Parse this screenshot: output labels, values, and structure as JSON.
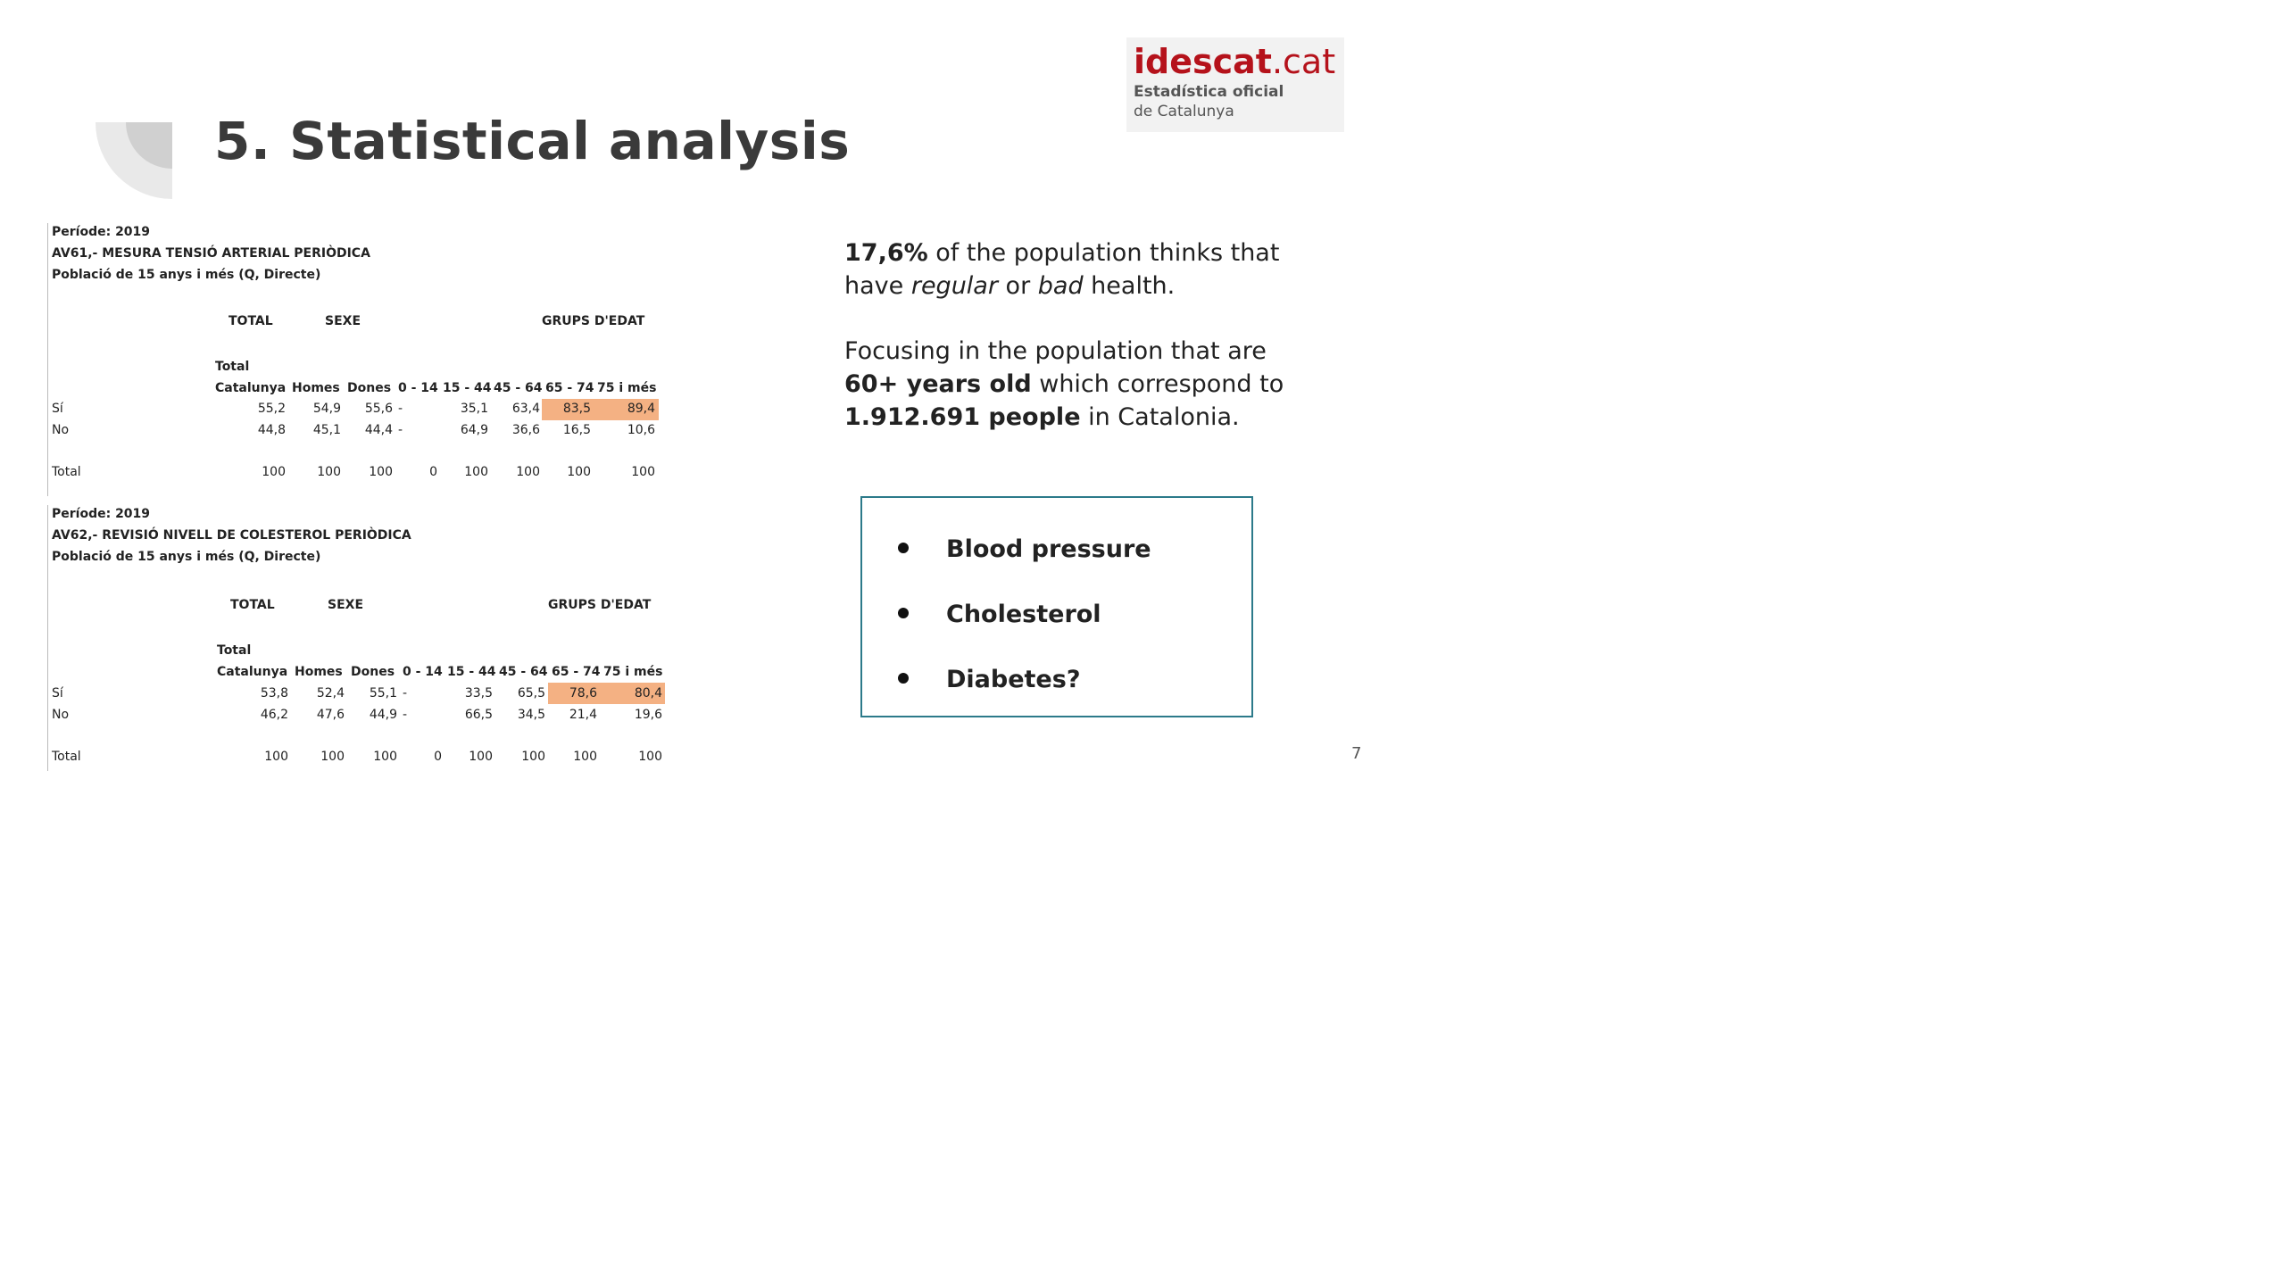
{
  "slide": {
    "title": "5.  Statistical analysis",
    "page_number": "7"
  },
  "logo": {
    "brand_bold": "idescat",
    "brand_suffix": ".cat",
    "line1": "Estadística oficial",
    "line2": "de Catalunya",
    "brand_color": "#b5121b"
  },
  "highlight_color": "#f4b183",
  "table1": {
    "periode": "Període: 2019",
    "title": "AV61,- MESURA  TENSIÓ ARTERIAL PERIÒDICA",
    "population": "Població de 15 anys i més (Q, Directe)",
    "group_total": "TOTAL",
    "group_sexe": "SEXE",
    "group_edat": "GRUPS D'EDAT",
    "total_label": "Total",
    "columns": [
      "Catalunya",
      "Homes",
      "Dones",
      "0 - 14",
      "15 - 44",
      "45 - 64",
      "65 - 74",
      "75 i més"
    ],
    "rows": [
      {
        "label": "Sí",
        "values": [
          "55,2",
          "54,9",
          "55,6",
          "-",
          "35,1",
          "63,4",
          "83,5",
          "89,4"
        ]
      },
      {
        "label": "No",
        "values": [
          "44,8",
          "45,1",
          "44,4",
          "-",
          "64,9",
          "36,6",
          "16,5",
          "10,6"
        ]
      },
      {
        "label": "Total",
        "values": [
          "100",
          "100",
          "100",
          "0",
          "100",
          "100",
          "100",
          "100"
        ]
      }
    ]
  },
  "table2": {
    "periode": "Període: 2019",
    "title": "AV62,- REVISIÓ NIVELL DE COLESTEROL PERIÒDICA",
    "population": "Població de 15 anys i més (Q, Directe)",
    "group_total": "TOTAL",
    "group_sexe": "SEXE",
    "group_edat": "GRUPS D'EDAT",
    "total_label": "Total",
    "columns": [
      "Catalunya",
      "Homes",
      "Dones",
      "0 - 14",
      "15 - 44",
      "45 - 64",
      "65 - 74",
      "75 i més"
    ],
    "rows": [
      {
        "label": "Sí",
        "values": [
          "53,8",
          "52,4",
          "55,1",
          "-",
          "33,5",
          "65,5",
          "78,6",
          "80,4"
        ]
      },
      {
        "label": "No",
        "values": [
          "46,2",
          "47,6",
          "44,9",
          "-",
          "66,5",
          "34,5",
          "21,4",
          "19,6"
        ]
      },
      {
        "label": "Total",
        "values": [
          "100",
          "100",
          "100",
          "0",
          "100",
          "100",
          "100",
          "100"
        ]
      }
    ]
  },
  "stats": {
    "p1_bold": "17,6%",
    "p1_a": " of the population thinks that have ",
    "p1_italic1": "regular",
    "p1_b": " or ",
    "p1_italic2": "bad",
    "p1_c": " health.",
    "p2_a": "Focusing in the population that are ",
    "p2_bold1": "60+ years old",
    "p2_b": " which correspond to ",
    "p2_bold2": "1.912.691 people",
    "p2_c": " in Catalonia."
  },
  "bullets": [
    "Blood pressure",
    "Cholesterol",
    "Diabetes?"
  ]
}
